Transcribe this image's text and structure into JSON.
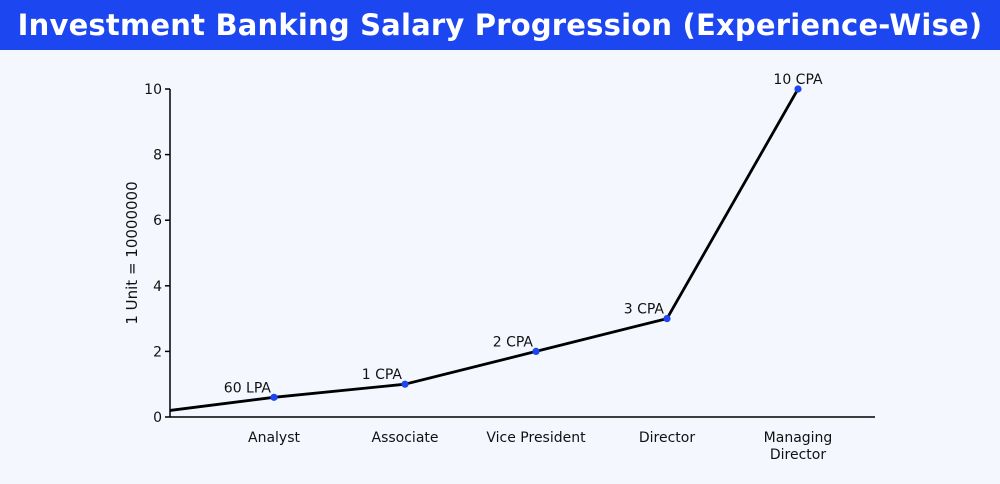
{
  "title": "Investment Banking Salary Progression (Experience-Wise)",
  "colors": {
    "title_bar": "#1c46f0",
    "title_text": "#ffffff",
    "background": "#f4f8fe",
    "line": "#000000",
    "marker": "#1c46f0"
  },
  "chart_data": {
    "type": "line",
    "title": "Investment Banking Salary Progression (Experience-Wise)",
    "xlabel": "",
    "ylabel": "1 Unit = 10000000",
    "ylim": [
      0,
      10
    ],
    "yticks": [
      0,
      2,
      4,
      6,
      8,
      10
    ],
    "grid": false,
    "legend": "none",
    "line_start_y": 0.2,
    "categories": [
      "Analyst",
      "Associate",
      "Vice President",
      "Director",
      "Managing Director"
    ],
    "values": [
      0.6,
      1,
      2,
      3,
      10
    ],
    "data_labels": [
      "60 LPA",
      "1 CPA",
      "2 CPA",
      "3 CPA",
      "10 CPA"
    ]
  }
}
